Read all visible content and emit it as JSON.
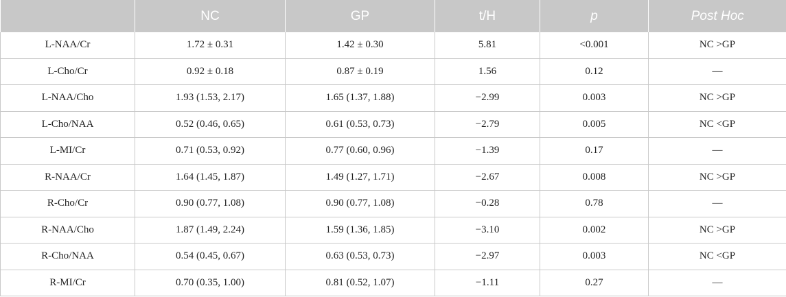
{
  "table": {
    "headers": [
      "",
      "NC",
      "GP",
      "t/H",
      "p",
      "Post Hoc"
    ],
    "rows": [
      [
        "L-NAA/Cr",
        "1.72 ± 0.31",
        "1.42 ± 0.30",
        "5.81",
        "<0.001",
        "NC >GP"
      ],
      [
        "L-Cho/Cr",
        "0.92 ± 0.18",
        "0.87 ± 0.19",
        "1.56",
        "0.12",
        "—"
      ],
      [
        "L-NAA/Cho",
        "1.93 (1.53, 2.17)",
        "1.65 (1.37, 1.88)",
        "−2.99",
        "0.003",
        "NC >GP"
      ],
      [
        "L-Cho/NAA",
        "0.52 (0.46, 0.65)",
        "0.61 (0.53, 0.73)",
        "−2.79",
        "0.005",
        "NC <GP"
      ],
      [
        "L-MI/Cr",
        "0.71 (0.53, 0.92)",
        "0.77 (0.60, 0.96)",
        "−1.39",
        "0.17",
        "—"
      ],
      [
        "R-NAA/Cr",
        "1.64 (1.45, 1.87)",
        "1.49 (1.27, 1.71)",
        "−2.67",
        "0.008",
        "NC >GP"
      ],
      [
        "R-Cho/Cr",
        "0.90 (0.77, 1.08)",
        "0.90 (0.77, 1.08)",
        "−0.28",
        "0.78",
        "—"
      ],
      [
        "R-NAA/Cho",
        "1.87 (1.49, 2.24)",
        "1.59 (1.36, 1.85)",
        "−3.10",
        "0.002",
        "NC >GP"
      ],
      [
        "R-Cho/NAA",
        "0.54 (0.45, 0.67)",
        "0.63 (0.53, 0.73)",
        "−2.97",
        "0.003",
        "NC <GP"
      ],
      [
        "R-MI/Cr",
        "0.70 (0.35, 1.00)",
        "0.81 (0.52, 1.07)",
        "−1.11",
        "0.27",
        "—"
      ]
    ]
  },
  "colors": {
    "header_bg": "#c8c8c8",
    "header_text": "#ffffff",
    "grid": "#c8c8c8",
    "body_text": "#222222"
  }
}
